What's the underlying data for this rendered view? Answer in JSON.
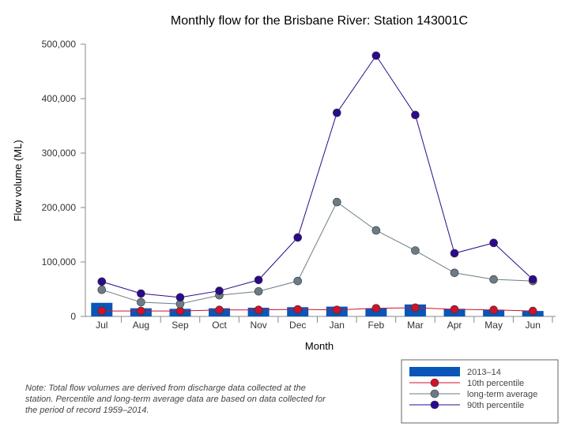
{
  "chart_data": {
    "type": "bar+line",
    "title": "Monthly flow for the Brisbane River: Station 143001C",
    "xlabel": "Month",
    "ylabel": "Flow volume (ML)",
    "ylim": [
      0,
      500000
    ],
    "yticks": [
      "0",
      "100,000",
      "200,000",
      "300,000",
      "400,000",
      "500,000"
    ],
    "yticks_values": [
      0,
      100000,
      200000,
      300000,
      400000,
      500000
    ],
    "grid": false,
    "legend_position": "bottom-right",
    "categories": [
      "Jul",
      "Aug",
      "Sep",
      "Oct",
      "Nov",
      "Dec",
      "Jan",
      "Feb",
      "Mar",
      "Apr",
      "May",
      "Jun"
    ],
    "series": [
      {
        "name": "2013–14",
        "kind": "bar",
        "color": "#0a56b8",
        "values": [
          25000,
          15000,
          14000,
          15000,
          16000,
          17000,
          18000,
          15000,
          22000,
          14000,
          12000,
          10000
        ]
      },
      {
        "name": "10th percentile",
        "kind": "line",
        "color": "#d0122c",
        "values": [
          10000,
          10000,
          10000,
          12000,
          12000,
          13000,
          12000,
          15000,
          16000,
          13000,
          12000,
          10000
        ]
      },
      {
        "name": "long-term average",
        "kind": "line",
        "color": "#6b7c87",
        "values": [
          49000,
          26000,
          23000,
          39000,
          46000,
          65000,
          210000,
          158000,
          121000,
          80000,
          68000,
          65000
        ]
      },
      {
        "name": "90th percentile",
        "kind": "line",
        "color": "#2b0a8c",
        "values": [
          64000,
          42000,
          35000,
          47000,
          67000,
          145000,
          374000,
          479000,
          370000,
          116000,
          135000,
          68000
        ]
      }
    ]
  },
  "note": "Note: Total flow volumes are derived from discharge data collected at the station. Percentile and long-term average data are based on data collected for the period of record 1959–2014."
}
